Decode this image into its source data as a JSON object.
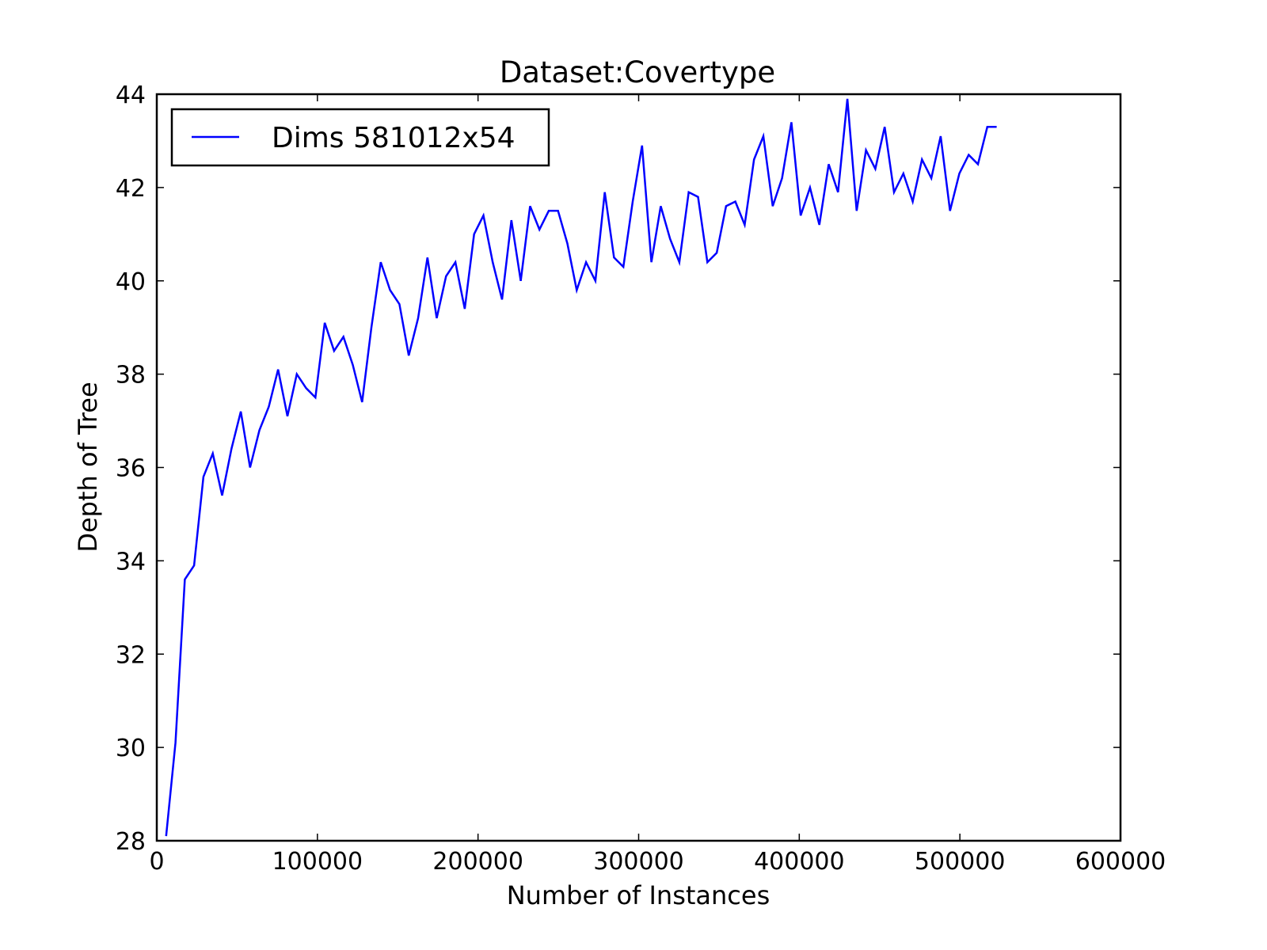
{
  "chart_data": {
    "type": "line",
    "title": "Dataset:Covertype",
    "xlabel": "Number of Instances",
    "ylabel": "Depth of Tree",
    "xlim": [
      0,
      600000
    ],
    "ylim": [
      28,
      44
    ],
    "xticks": [
      0,
      100000,
      200000,
      300000,
      400000,
      500000,
      600000
    ],
    "yticks": [
      28,
      30,
      32,
      34,
      36,
      38,
      40,
      42,
      44
    ],
    "grid": false,
    "legend_position": "top-left",
    "series": [
      {
        "name": "Dims 581012x54",
        "color": "#0000ff",
        "x": [
          5810,
          11620,
          17430,
          23240,
          29050,
          34860,
          40670,
          46480,
          52290,
          58100,
          63910,
          69720,
          75530,
          81340,
          87150,
          92960,
          98770,
          104580,
          110390,
          116200,
          122010,
          127820,
          133630,
          139440,
          145250,
          151060,
          156870,
          162680,
          168490,
          174300,
          180110,
          185920,
          191730,
          197540,
          203350,
          209160,
          214970,
          220780,
          226590,
          232400,
          238210,
          244020,
          249830,
          255640,
          261450,
          267260,
          273070,
          278880,
          284690,
          290500,
          296310,
          302120,
          307930,
          313740,
          319550,
          325360,
          331170,
          336980,
          342790,
          348600,
          354410,
          360220,
          366030,
          371840,
          377650,
          383460,
          389270,
          395080,
          400890,
          406700,
          412510,
          418320,
          424130,
          429940,
          435750,
          441560,
          447370,
          453180,
          458990,
          464800,
          470610,
          476420,
          482230,
          488040,
          493850,
          499660,
          505470,
          511280,
          517090,
          522900
        ],
        "y": [
          28.1,
          30.1,
          33.6,
          33.9,
          35.8,
          36.3,
          35.4,
          36.4,
          37.2,
          36.0,
          36.8,
          37.3,
          38.1,
          37.1,
          38.0,
          37.7,
          37.5,
          39.1,
          38.5,
          38.8,
          38.2,
          37.4,
          39.0,
          40.4,
          39.8,
          39.5,
          38.4,
          39.2,
          40.5,
          39.2,
          40.1,
          40.4,
          39.4,
          41.0,
          41.4,
          40.4,
          39.6,
          41.3,
          40.0,
          41.6,
          41.1,
          41.5,
          41.5,
          40.8,
          39.8,
          40.4,
          40.0,
          41.9,
          40.5,
          40.3,
          41.7,
          42.9,
          40.4,
          41.6,
          40.9,
          40.4,
          41.9,
          41.8,
          40.4,
          40.6,
          41.6,
          41.7,
          41.2,
          42.6,
          43.1,
          41.6,
          42.2,
          43.4,
          41.4,
          42.0,
          41.2,
          42.5,
          41.9,
          43.9,
          41.5,
          42.8,
          42.4,
          43.3,
          41.9,
          42.3,
          41.7,
          42.6,
          42.2,
          43.1,
          41.5,
          42.3,
          42.7,
          42.5,
          43.3,
          43.3
        ]
      }
    ]
  }
}
